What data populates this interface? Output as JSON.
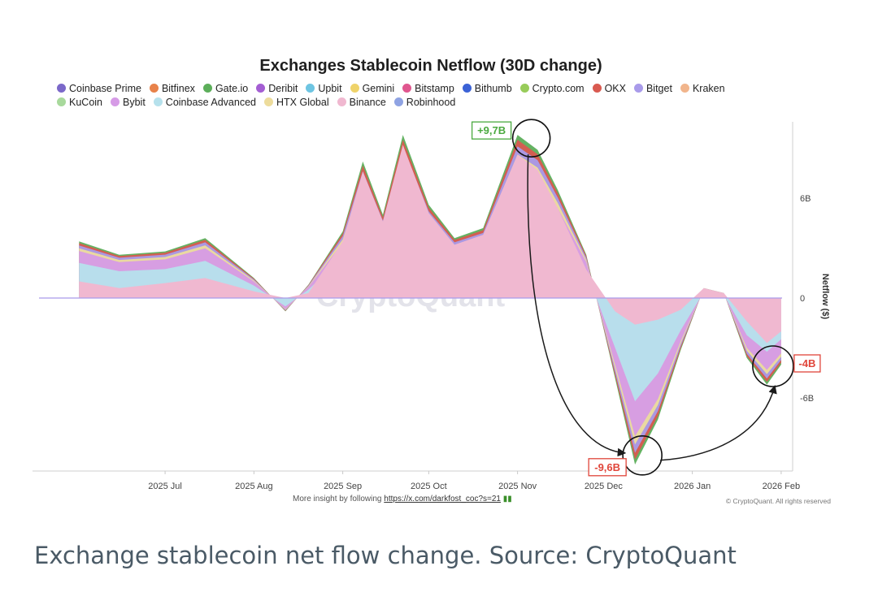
{
  "chart_data": {
    "type": "area",
    "title": "Exchanges Stablecoin Netflow (30D change)",
    "xlabel": "",
    "ylabel": "Netflow ($)",
    "x_ticks": [
      "2025 Jul",
      "2025 Aug",
      "2025 Sep",
      "2025 Oct",
      "2025 Nov",
      "2025 Dec",
      "2026 Jan",
      "2026 Feb"
    ],
    "y_ticks": [
      {
        "value": 6,
        "label": "6B"
      },
      {
        "value": 0,
        "label": "0"
      },
      {
        "value": -6,
        "label": "-6B"
      }
    ],
    "y_unit": "billion USD",
    "ylim": [
      -11.5,
      11.8
    ],
    "legend_position": "top",
    "grid": false,
    "watermark": "CryptoQuant",
    "series": [
      {
        "name": "Coinbase Prime",
        "color": "#7b68c9"
      },
      {
        "name": "Bitfinex",
        "color": "#e8824a"
      },
      {
        "name": "Gate.io",
        "color": "#5cae5a"
      },
      {
        "name": "Deribit",
        "color": "#a45ed3"
      },
      {
        "name": "Upbit",
        "color": "#6ec5e2"
      },
      {
        "name": "Gemini",
        "color": "#efd36a"
      },
      {
        "name": "Bitstamp",
        "color": "#e0578f"
      },
      {
        "name": "Bithumb",
        "color": "#3b62d6"
      },
      {
        "name": "Crypto.com",
        "color": "#98cc5a"
      },
      {
        "name": "OKX",
        "color": "#d95a50"
      },
      {
        "name": "Bitget",
        "color": "#a99bea"
      },
      {
        "name": "Kraken",
        "color": "#f1b58c"
      },
      {
        "name": "KuCoin",
        "color": "#a8d99c"
      },
      {
        "name": "Bybit",
        "color": "#d69be6"
      },
      {
        "name": "Coinbase Advanced",
        "color": "#b6e1ec"
      },
      {
        "name": "HTX Global",
        "color": "#eddc9c"
      },
      {
        "name": "Binance",
        "color": "#f0b8d0"
      },
      {
        "name": "Robinhood",
        "color": "#8fa3e3"
      }
    ],
    "x": [
      "2025-06-01",
      "2025-06-15",
      "2025-07-01",
      "2025-07-15",
      "2025-08-01",
      "2025-08-12",
      "2025-08-20",
      "2025-09-01",
      "2025-09-08",
      "2025-09-15",
      "2025-09-22",
      "2025-10-01",
      "2025-10-10",
      "2025-10-20",
      "2025-11-01",
      "2025-11-08",
      "2025-11-15",
      "2025-11-25",
      "2025-12-05",
      "2025-12-12",
      "2025-12-20",
      "2025-12-28",
      "2026-01-05",
      "2026-01-12",
      "2026-01-20",
      "2026-01-27",
      "2026-02-01"
    ],
    "totals": [
      3.4,
      2.6,
      2.8,
      3.6,
      1.2,
      -0.8,
      0.8,
      4.0,
      8.2,
      5.0,
      9.8,
      5.6,
      3.6,
      4.2,
      9.8,
      8.9,
      6.5,
      2.6,
      -4.8,
      -10.0,
      -7.3,
      -3.1,
      0.6,
      0.3,
      -3.6,
      -5.2,
      -4.0
    ],
    "binance": [
      1.0,
      0.6,
      0.9,
      1.2,
      0.4,
      0.0,
      0.3,
      3.4,
      7.6,
      4.6,
      9.2,
      5.1,
      3.2,
      3.8,
      8.6,
      7.7,
      5.4,
      1.7,
      -0.8,
      -1.6,
      -1.3,
      -0.7,
      0.6,
      0.3,
      -1.4,
      -2.7,
      -2.0
    ],
    "annotations": [
      {
        "label": "+9,7B",
        "date": "2025-11-01",
        "value": 9.7,
        "color": "#4aa93f"
      },
      {
        "label": "-9,6B",
        "date": "2025-12-12",
        "value": -9.6,
        "color": "#e0453a"
      },
      {
        "label": "-4B",
        "date": "2026-02-01",
        "value": -4.0,
        "color": "#e0453a"
      }
    ],
    "footer": {
      "text": "More insight by following ",
      "link": "https://x.com/darkfost_coc?s=21",
      "copyright": "© CryptoQuant. All rights reserved"
    }
  },
  "caption": "Exchange stablecoin net flow change. Source: CryptoQuant"
}
